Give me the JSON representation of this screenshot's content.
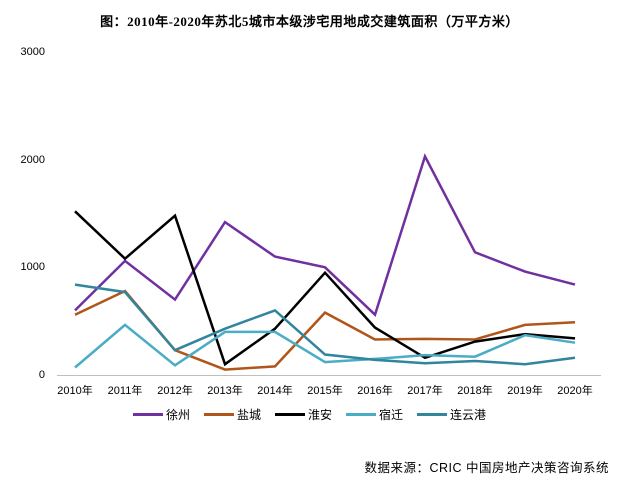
{
  "title": "图：2010年-2020年苏北5城市本级涉宅用地成交建筑面积（万平方米）",
  "source": "数据来源：CRIC 中国房地产决策咨询系统",
  "axis": {
    "y_ticks": [
      3000,
      2000,
      1000,
      0
    ],
    "axis_line_color": "#BFBFBF"
  },
  "chart_data": {
    "type": "line",
    "title": "图：2010年-2020年苏北5城市本级涉宅用地成交建筑面积（万平方米）",
    "xlabel": "",
    "ylabel": "万平方米",
    "ylim": [
      0,
      3000
    ],
    "grid": false,
    "legend_position": "bottom",
    "categories": [
      "2010年",
      "2011年",
      "2012年",
      "2013年",
      "2014年",
      "2015年",
      "2016年",
      "2017年",
      "2018年",
      "2019年",
      "2020年"
    ],
    "series": [
      {
        "key": "xuzhou",
        "name": "徐州",
        "color": "#7030A0",
        "values": [
          600,
          1060,
          700,
          1420,
          1100,
          1000,
          560,
          2030,
          1140,
          960,
          840
        ]
      },
      {
        "key": "yancheng",
        "name": "盐城",
        "color": "#B0561A",
        "values": [
          560,
          780,
          230,
          50,
          80,
          580,
          330,
          335,
          330,
          465,
          490
        ]
      },
      {
        "key": "huaian",
        "name": "淮安",
        "color": "#000000",
        "values": [
          1520,
          1080,
          1480,
          100,
          430,
          950,
          440,
          160,
          310,
          380,
          340
        ]
      },
      {
        "key": "suqian",
        "name": "宿迁",
        "color": "#4BACC6",
        "values": [
          70,
          465,
          90,
          400,
          400,
          120,
          150,
          185,
          170,
          370,
          300
        ]
      },
      {
        "key": "lianyungang",
        "name": "连云港",
        "color": "#31859C",
        "values": [
          840,
          770,
          230,
          430,
          600,
          190,
          140,
          110,
          130,
          100,
          160
        ]
      }
    ]
  }
}
